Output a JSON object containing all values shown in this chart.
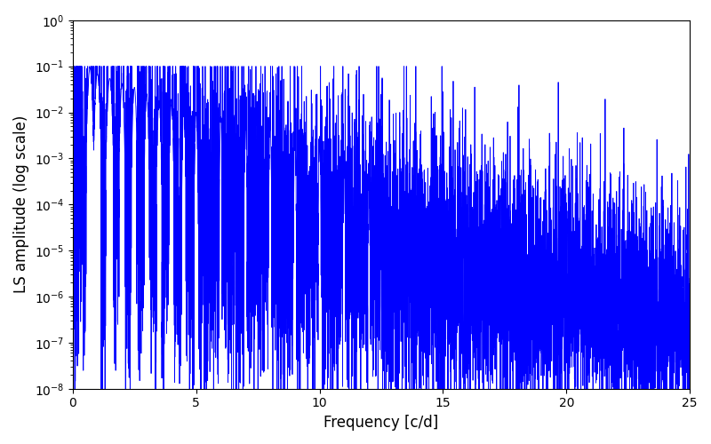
{
  "xlabel": "Frequency [c/d]",
  "ylabel": "LS amplitude (log scale)",
  "line_color": "#0000ff",
  "xlim": [
    0,
    25
  ],
  "ylim": [
    1e-08,
    1.0
  ],
  "figsize": [
    8.0,
    5.0
  ],
  "dpi": 100,
  "seed": 7,
  "n_points": 8000,
  "freq_max": 25.0,
  "bg_color": "#ffffff"
}
